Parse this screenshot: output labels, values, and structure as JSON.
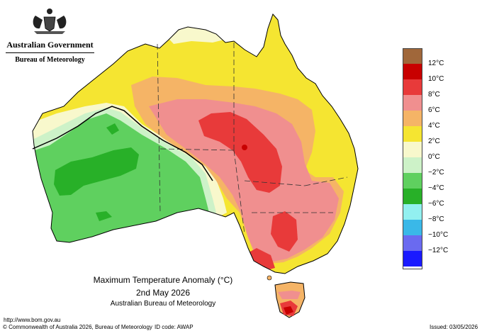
{
  "header": {
    "government": "Australian Government",
    "bureau": "Bureau of Meteorology"
  },
  "title": {
    "line1": "Maximum Temperature Anomaly (°C)",
    "line2": "2nd May 2026",
    "line3": "Australian Bureau of Meteorology"
  },
  "legend": [
    {
      "label": "",
      "color": "#a0673a"
    },
    {
      "label": "12°C",
      "color": "#c80000"
    },
    {
      "label": "10°C",
      "color": "#e83a3a"
    },
    {
      "label": "8°C",
      "color": "#f08f8f"
    },
    {
      "label": "6°C",
      "color": "#f5b466"
    },
    {
      "label": "4°C",
      "color": "#f5e531"
    },
    {
      "label": "2°C",
      "color": "#f8f8cc"
    },
    {
      "label": "0°C",
      "color": "#cdf2c8"
    },
    {
      "label": "−2°C",
      "color": "#5fd05f"
    },
    {
      "label": "−4°C",
      "color": "#28b028"
    },
    {
      "label": "−6°C",
      "color": "#92f0f0"
    },
    {
      "label": "−8°C",
      "color": "#3ab8e8"
    },
    {
      "label": "−10°C",
      "color": "#6a6af0"
    },
    {
      "label": "−12°C",
      "color": "#1a1aff"
    }
  ],
  "footer": {
    "url": "http://www.bom.gov.au",
    "copyright": "© Commonwealth of Australia 2026, Bureau of Meteorology",
    "id_code": "ID code: AWAP",
    "issued": "Issued: 03/05/2026"
  }
}
